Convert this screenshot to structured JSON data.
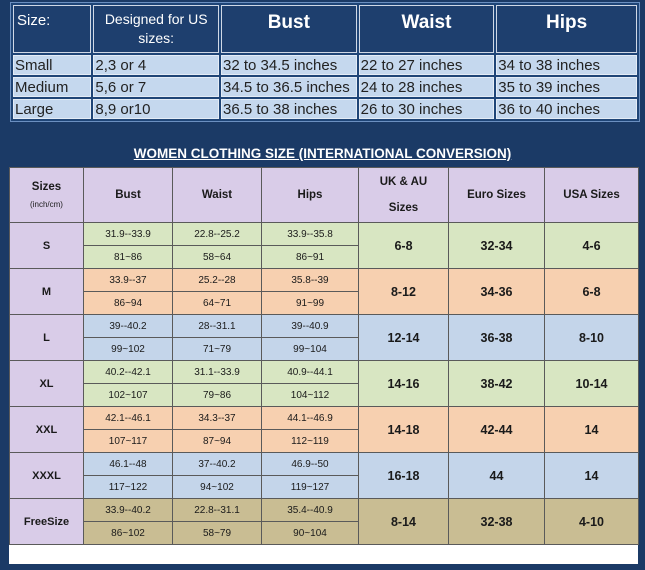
{
  "top_table": {
    "headers": {
      "size": "Size:",
      "designed_for_us": "Designed for US sizes:",
      "bust": "Bust",
      "waist": "Waist",
      "hips": "Hips"
    },
    "rows": [
      {
        "size": "Small",
        "us": "2,3 or 4",
        "bust": "32 to 34.5 inches",
        "waist": "22 to 27 inches",
        "hips": "34 to 38 inches"
      },
      {
        "size": "Medium",
        "us": "5,6 or 7",
        "bust": "34.5 to 36.5 inches",
        "waist": "24 to 28 inches",
        "hips": "35 to 39 inches"
      },
      {
        "size": "Large",
        "us": "8,9 or10",
        "bust": "36.5 to 38 inches",
        "waist": "26 to 30 inches",
        "hips": "36 to 40 inches"
      }
    ]
  },
  "conversion_title": "WOMEN CLOTHING SIZE (INTERNATIONAL CONVERSION)",
  "conversion_table": {
    "headers": {
      "sizes": "Sizes",
      "sizes_unit": "(inch/cm)",
      "bust": "Bust",
      "waist": "Waist",
      "hips": "Hips",
      "uk_au_line1": "UK & AU",
      "uk_au_line2": "Sizes",
      "euro": "Euro Sizes",
      "usa": "USA Sizes"
    },
    "rows": [
      {
        "size": "S",
        "color": "green",
        "bust_in": "31.9--33.9",
        "bust_cm": "81~86",
        "waist_in": "22.8--25.2",
        "waist_cm": "58~64",
        "hips_in": "33.9--35.8",
        "hips_cm": "86~91",
        "uk_au": "6-8",
        "euro": "32-34",
        "usa": "4-6"
      },
      {
        "size": "M",
        "color": "orange",
        "bust_in": "33.9--37",
        "bust_cm": "86~94",
        "waist_in": "25.2--28",
        "waist_cm": "64~71",
        "hips_in": "35.8--39",
        "hips_cm": "91~99",
        "uk_au": "8-12",
        "euro": "34-36",
        "usa": "6-8"
      },
      {
        "size": "L",
        "color": "blue",
        "bust_in": "39--40.2",
        "bust_cm": "99~102",
        "waist_in": "28--31.1",
        "waist_cm": "71~79",
        "hips_in": "39--40.9",
        "hips_cm": "99~104",
        "uk_au": "12-14",
        "euro": "36-38",
        "usa": "8-10"
      },
      {
        "size": "XL",
        "color": "green",
        "bust_in": "40.2--42.1",
        "bust_cm": "102~107",
        "waist_in": "31.1--33.9",
        "waist_cm": "79~86",
        "hips_in": "40.9--44.1",
        "hips_cm": "104~112",
        "uk_au": "14-16",
        "euro": "38-42",
        "usa": "10-14"
      },
      {
        "size": "XXL",
        "color": "orange",
        "bust_in": "42.1--46.1",
        "bust_cm": "107~117",
        "waist_in": "34.3--37",
        "waist_cm": "87~94",
        "hips_in": "44.1--46.9",
        "hips_cm": "112~119",
        "uk_au": "14-18",
        "euro": "42-44",
        "usa": "14"
      },
      {
        "size": "XXXL",
        "color": "blue",
        "bust_in": "46.1--48",
        "bust_cm": "117~122",
        "waist_in": "37--40.2",
        "waist_cm": "94~102",
        "hips_in": "46.9--50",
        "hips_cm": "119~127",
        "uk_au": "16-18",
        "euro": "44",
        "usa": "14"
      },
      {
        "size": "FreeSize",
        "color": "tan",
        "bust_in": "33.9--40.2",
        "bust_cm": "86~102",
        "waist_in": "22.8--31.1",
        "waist_cm": "58~79",
        "hips_in": "35.4--40.9",
        "hips_cm": "90~104",
        "uk_au": "8-14",
        "euro": "32-38",
        "usa": "4-10"
      }
    ]
  },
  "colors": {
    "background": "#1b3a66",
    "header_purple": "#d9cce8",
    "green": "#d8e6c2",
    "orange": "#f7d0b0",
    "blue": "#c4d5ea",
    "tan": "#c9bd93"
  }
}
